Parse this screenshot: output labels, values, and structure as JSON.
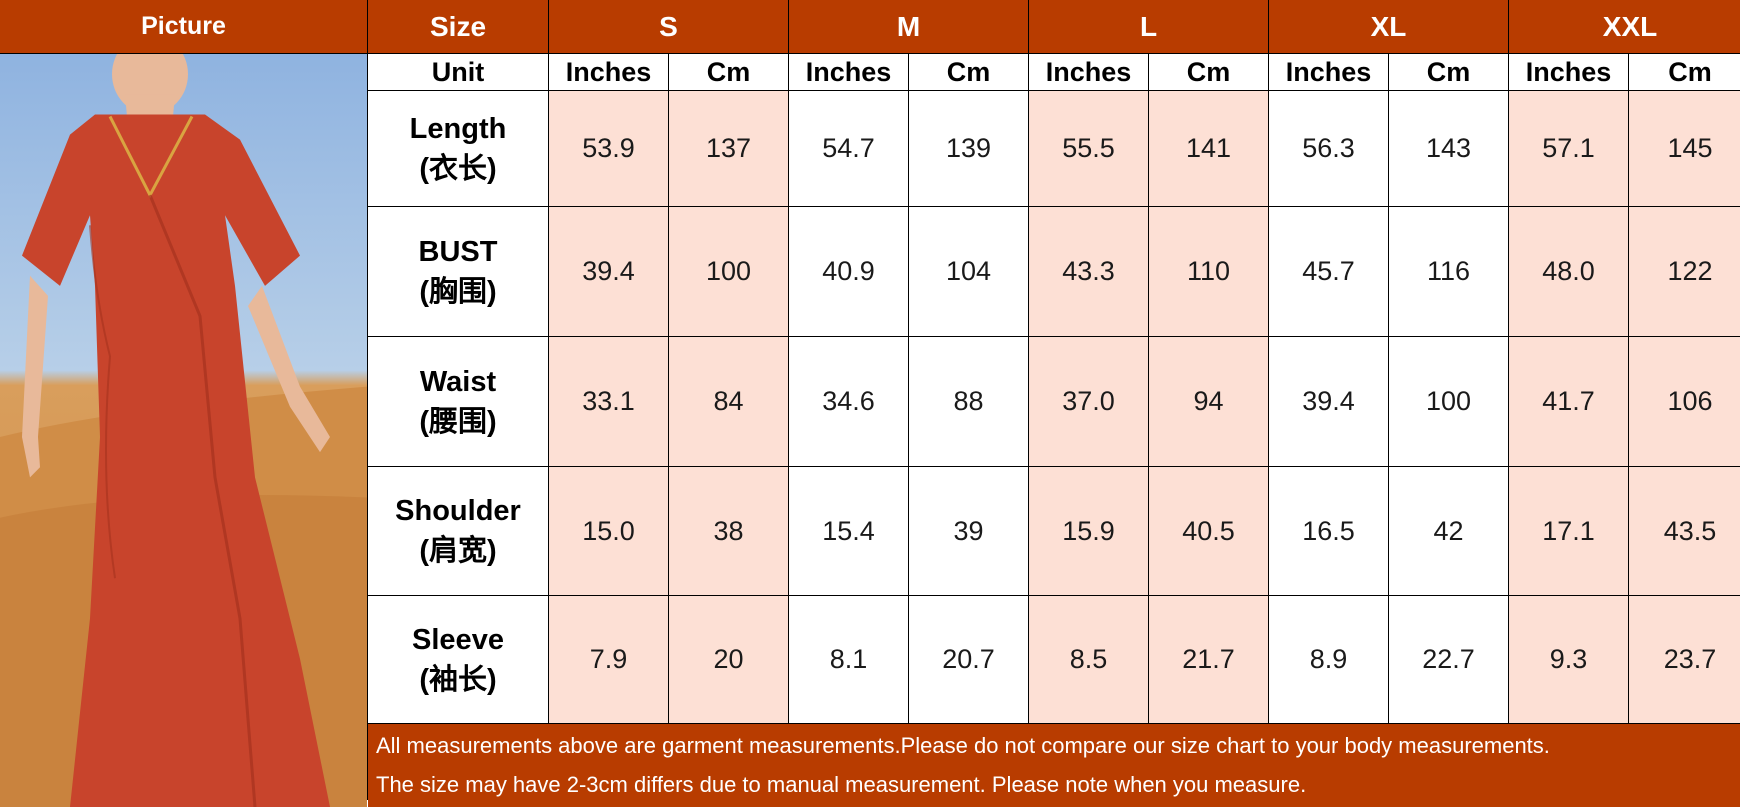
{
  "header": {
    "picture_label": "Picture",
    "size_label": "Size",
    "sizes": [
      "S",
      "M",
      "L",
      "XL",
      "XXL"
    ]
  },
  "unit_row": {
    "label": "Unit",
    "inches": "Inches",
    "cm": "Cm"
  },
  "rows": [
    {
      "name": "Length",
      "zh": "(衣长)",
      "values": [
        "53.9",
        "137",
        "54.7",
        "139",
        "55.5",
        "141",
        "56.3",
        "143",
        "57.1",
        "145"
      ]
    },
    {
      "name": "BUST",
      "zh": "(胸围)",
      "values": [
        "39.4",
        "100",
        "40.9",
        "104",
        "43.3",
        "110",
        "45.7",
        "116",
        "48.0",
        "122"
      ]
    },
    {
      "name": "Waist",
      "zh": "(腰围)",
      "values": [
        "33.1",
        "84",
        "34.6",
        "88",
        "37.0",
        "94",
        "39.4",
        "100",
        "41.7",
        "106"
      ]
    },
    {
      "name": "Shoulder",
      "zh": "(肩宽)",
      "values": [
        "15.0",
        "38",
        "15.4",
        "39",
        "15.9",
        "40.5",
        "16.5",
        "42",
        "17.1",
        "43.5"
      ]
    },
    {
      "name": "Sleeve",
      "zh": "(袖长)",
      "values": [
        "7.9",
        "20",
        "8.1",
        "20.7",
        "8.5",
        "21.7",
        "8.9",
        "22.7",
        "9.3",
        "23.7"
      ]
    }
  ],
  "notes": [
    "All measurements above are garment measurements.Please do not compare our size chart to your body measurements.",
    "The size may have 2-3cm differs due to manual measurement. Please note when you measure."
  ],
  "colors": {
    "header_bg": "#b83c00",
    "pink_cell": "#fde0d5",
    "dress": "#c8442c"
  }
}
